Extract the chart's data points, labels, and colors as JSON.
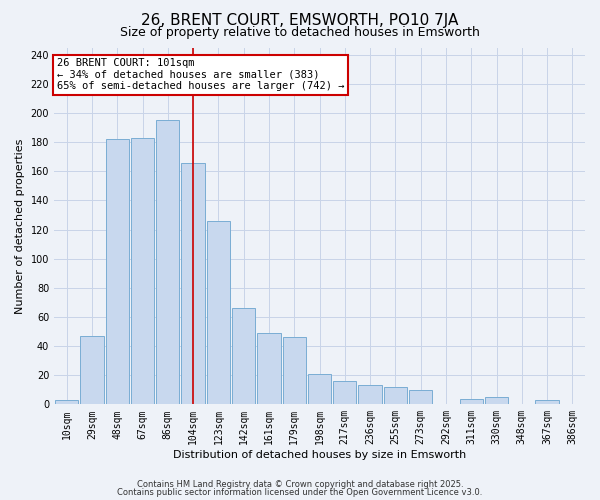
{
  "title": "26, BRENT COURT, EMSWORTH, PO10 7JA",
  "subtitle": "Size of property relative to detached houses in Emsworth",
  "xlabel": "Distribution of detached houses by size in Emsworth",
  "ylabel": "Number of detached properties",
  "bar_labels": [
    "10sqm",
    "29sqm",
    "48sqm",
    "67sqm",
    "86sqm",
    "104sqm",
    "123sqm",
    "142sqm",
    "161sqm",
    "179sqm",
    "198sqm",
    "217sqm",
    "236sqm",
    "255sqm",
    "273sqm",
    "292sqm",
    "311sqm",
    "330sqm",
    "348sqm",
    "367sqm",
    "386sqm"
  ],
  "bar_values": [
    3,
    47,
    182,
    183,
    195,
    166,
    126,
    66,
    49,
    46,
    21,
    16,
    13,
    12,
    10,
    0,
    4,
    5,
    0,
    3,
    0
  ],
  "bar_color": "#c8d8ee",
  "bar_edge_color": "#7aadd4",
  "grid_color": "#c8d4e8",
  "background_color": "#eef2f8",
  "vertical_line_x": 5,
  "vertical_line_color": "#cc0000",
  "annotation_line1": "26 BRENT COURT: 101sqm",
  "annotation_line2": "← 34% of detached houses are smaller (383)",
  "annotation_line3": "65% of semi-detached houses are larger (742) →",
  "annotation_box_color": "#ffffff",
  "annotation_box_edge": "#cc0000",
  "footer1": "Contains HM Land Registry data © Crown copyright and database right 2025.",
  "footer2": "Contains public sector information licensed under the Open Government Licence v3.0.",
  "ylim": [
    0,
    245
  ],
  "yticks": [
    0,
    20,
    40,
    60,
    80,
    100,
    120,
    140,
    160,
    180,
    200,
    220,
    240
  ],
  "title_fontsize": 11,
  "subtitle_fontsize": 9,
  "tick_fontsize": 7,
  "ylabel_fontsize": 8,
  "xlabel_fontsize": 8,
  "annotation_fontsize": 7.5,
  "footer_fontsize": 6
}
